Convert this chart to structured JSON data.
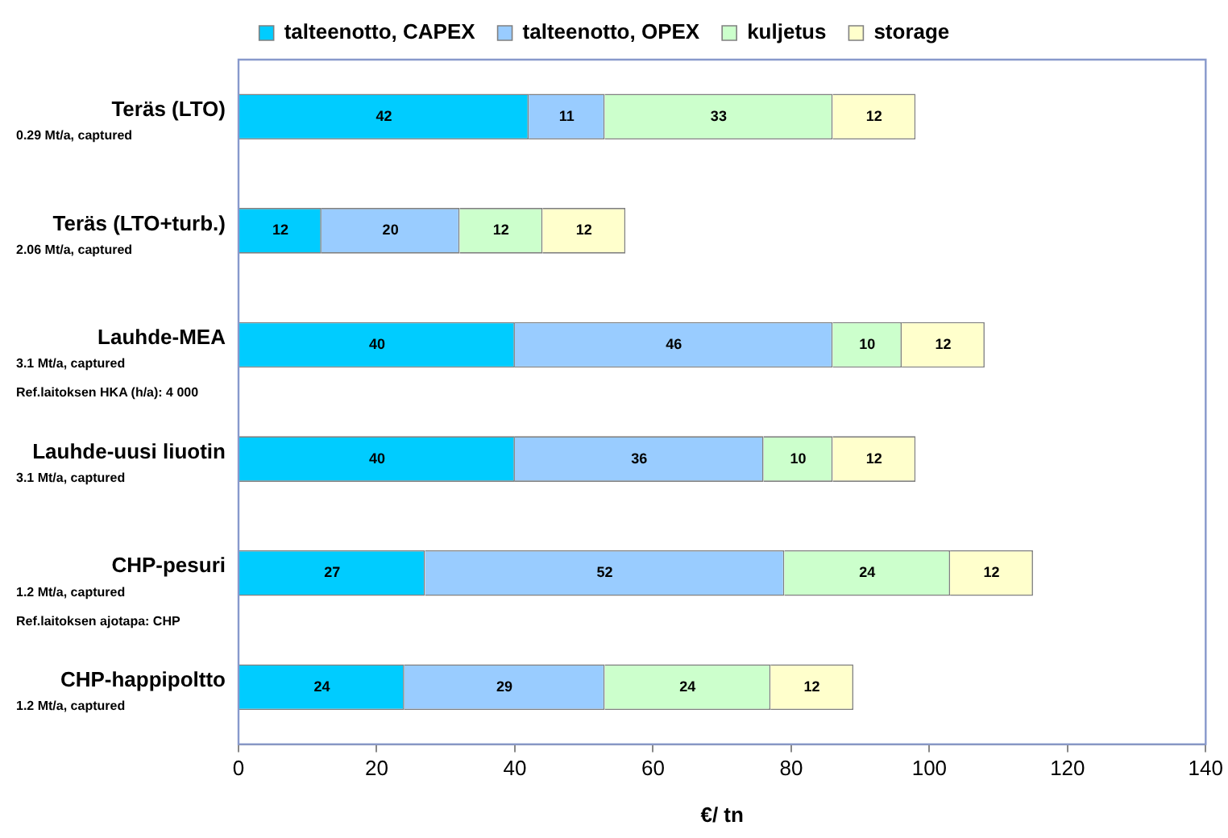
{
  "chart_data": {
    "type": "bar",
    "orientation": "horizontal",
    "stacked": true,
    "xlabel": "€/ tn",
    "categories": [
      "Teräs (LTO)\n0.29 Mt/a, captured",
      "Teräs (LTO+turb.)\n2.06 Mt/a, captured",
      "Lauhde-MEA\n3.1 Mt/a, captured\nRef.laitoksen HKA (h/a): 4 000",
      "Lauhde-uusi liuotin\n3.1 Mt/a, captured",
      "CHP-pesuri\n1.2 Mt/a, captured\nRef.laitoksen ajotapa: CHP",
      "CHP-happipoltto\n1.2 Mt/a, captured"
    ],
    "series": [
      {
        "name": "talteenotto, CAPEX",
        "color": "#00ccff",
        "values": [
          42,
          12,
          40,
          40,
          27,
          24
        ]
      },
      {
        "name": "talteenotto, OPEX",
        "color": "#99ccff",
        "values": [
          11,
          20,
          46,
          36,
          52,
          29
        ]
      },
      {
        "name": "kuljetus",
        "color": "#ccffcc",
        "values": [
          33,
          12,
          10,
          10,
          24,
          24
        ]
      },
      {
        "name": "storage",
        "color": "#ffffcc",
        "values": [
          12,
          12,
          12,
          12,
          12,
          12
        ]
      }
    ],
    "xlim": [
      0,
      140
    ],
    "xticks": [
      0,
      20,
      40,
      60,
      80,
      100,
      120,
      140
    ],
    "grid": false,
    "legend": "top",
    "data_labels": true
  }
}
